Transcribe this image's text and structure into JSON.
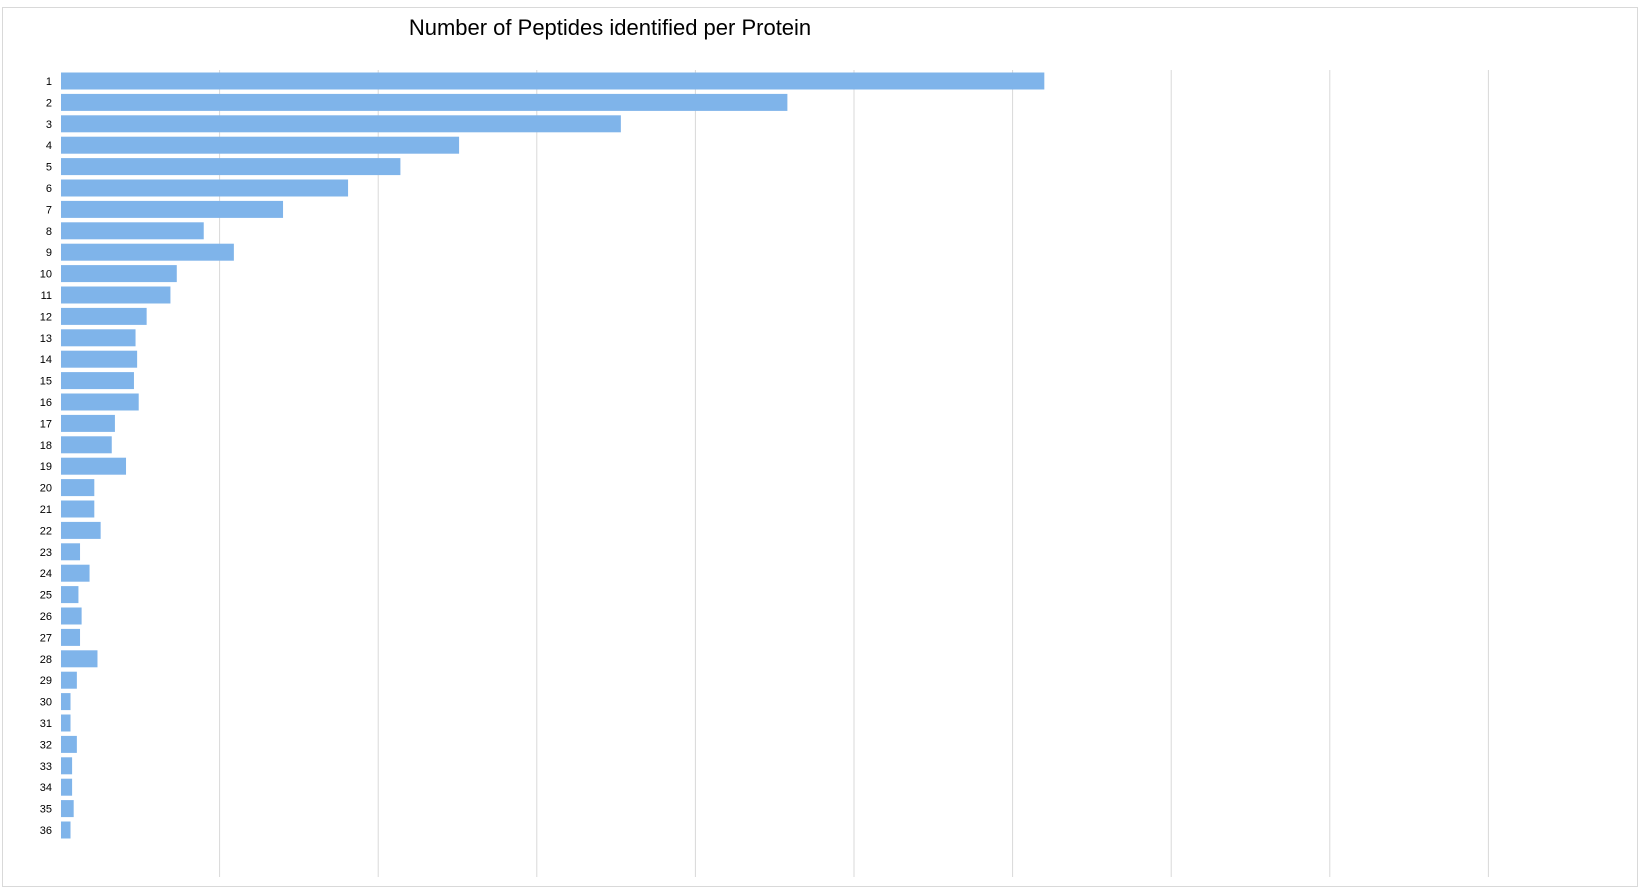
{
  "chart_data": {
    "type": "bar",
    "orientation": "horizontal",
    "title": "Number of Peptides identified per Protein",
    "xlabel": "",
    "ylabel": "",
    "categories": [
      "1",
      "2",
      "3",
      "4",
      "5",
      "6",
      "7",
      "8",
      "9",
      "10",
      "11",
      "12",
      "13",
      "14",
      "15",
      "16",
      "17",
      "18",
      "19",
      "20",
      "21",
      "22",
      "23",
      "24",
      "25",
      "26",
      "27",
      "28",
      "29",
      "30",
      "31",
      "32",
      "33",
      "34",
      "35",
      "36"
    ],
    "values": [
      620,
      458,
      353,
      251,
      214,
      181,
      140,
      90,
      109,
      73,
      69,
      54,
      47,
      48,
      46,
      49,
      34,
      32,
      41,
      21,
      21,
      25,
      12,
      18,
      11,
      13,
      12,
      23,
      10,
      6,
      6,
      10,
      7,
      7,
      8,
      6
    ],
    "xlim": [
      0,
      900
    ],
    "x_gridlines": [
      0,
      100,
      200,
      300,
      400,
      500,
      600,
      700,
      800,
      900
    ],
    "x_tick_labels_visible": false,
    "grid": true,
    "legend": "none",
    "bar_color": "#7fb4ea",
    "grid_color": "#d9d9d9"
  }
}
